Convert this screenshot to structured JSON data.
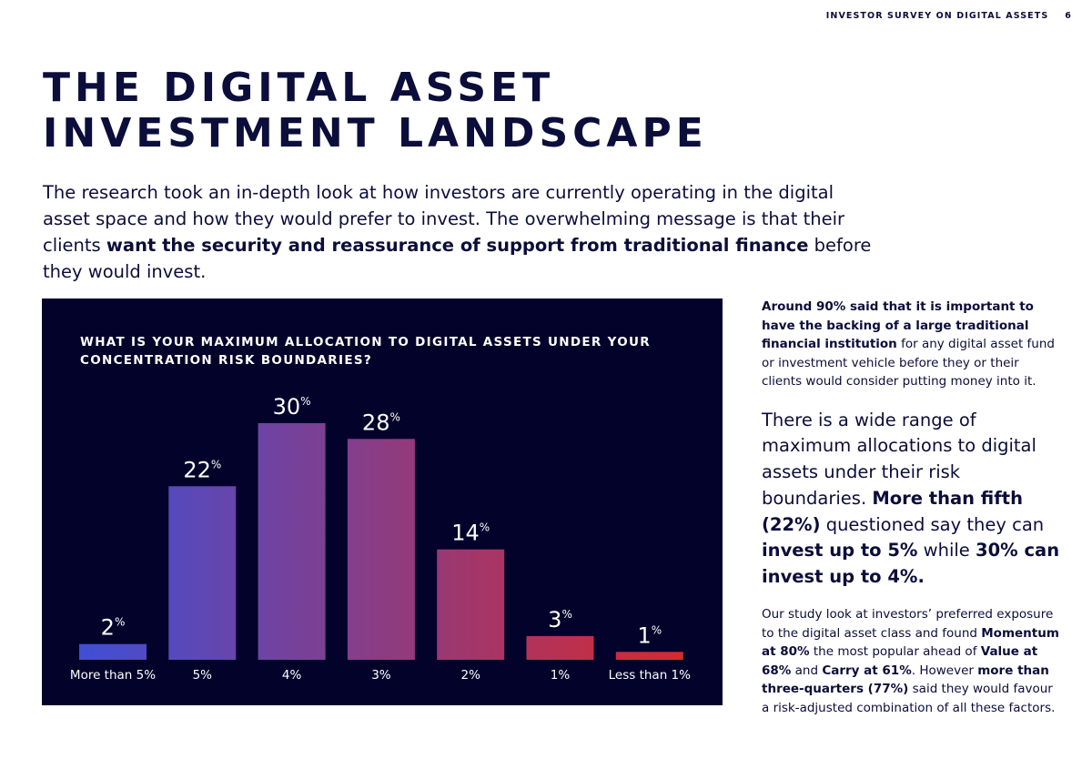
{
  "header": {
    "running_title": "INVESTOR SURVEY ON DIGITAL ASSETS",
    "page_number": "6"
  },
  "title": {
    "line1": "THE DIGITAL ASSET",
    "line2": "INVESTMENT LANDSCAPE"
  },
  "intro": {
    "text1": "The research took an in-depth look at how investors are currently operating in the digital asset space and how they would prefer to invest. The overwhelming message is that their clients ",
    "bold1": "want the security and reassurance of support from traditional finance",
    "text2": " before they would invest."
  },
  "chart_data": {
    "type": "bar",
    "title_line1": "WHAT IS YOUR MAXIMUM ALLOCATION TO DIGITAL ASSETS UNDER YOUR",
    "title_line2": "CONCENTRATION RISK BOUNDARIES?",
    "categories": [
      "More than 5%",
      "5%",
      "4%",
      "3%",
      "2%",
      "1%",
      "Less than 1%"
    ],
    "values": [
      2,
      22,
      30,
      28,
      14,
      3,
      1
    ],
    "unit": "%",
    "ylim": [
      0,
      30
    ],
    "grid": false,
    "colors": {
      "background": "#02022b",
      "bar_start": "#3f4fd6",
      "bar_end": "#d8292f",
      "text": "#ffffff"
    }
  },
  "sidebar": {
    "p1": [
      {
        "b": true,
        "t": "Around 90% said that it is important to have the backing of a large traditional financial institution"
      },
      {
        "b": false,
        "t": " for any digital asset fund or investment vehicle before they or their clients would consider putting money into it."
      }
    ],
    "p2": [
      {
        "b": false,
        "t": "There is a wide range of maximum allocations to digital assets under their risk boundaries. "
      },
      {
        "b": true,
        "t": "More than fifth (22%)"
      },
      {
        "b": false,
        "t": " questioned say they can "
      },
      {
        "b": true,
        "t": "invest up to 5%"
      },
      {
        "b": false,
        "t": " while "
      },
      {
        "b": true,
        "t": "30% can invest up to 4%."
      }
    ],
    "p3": [
      {
        "b": false,
        "t": "Our study look at investors’ preferred exposure to the digital asset class and found "
      },
      {
        "b": true,
        "t": "Momentum at 80%"
      },
      {
        "b": false,
        "t": " the most popular ahead of "
      },
      {
        "b": true,
        "t": "Value at 68%"
      },
      {
        "b": false,
        "t": " and "
      },
      {
        "b": true,
        "t": "Carry at 61%"
      },
      {
        "b": false,
        "t": ". However "
      },
      {
        "b": true,
        "t": "more than three-quarters (77%)"
      },
      {
        "b": false,
        "t": " said they would favour a risk-adjusted combination of all these factors."
      }
    ]
  }
}
